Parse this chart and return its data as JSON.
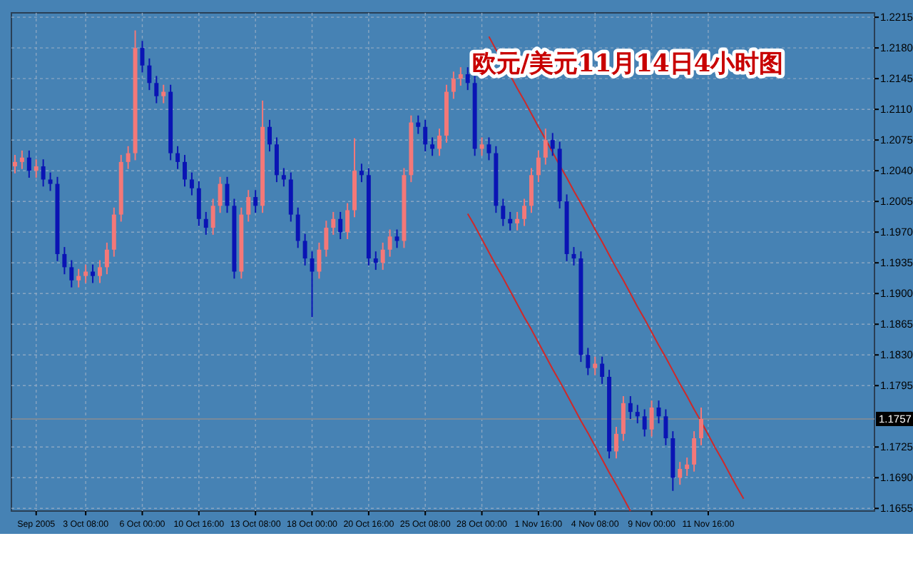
{
  "chart_data": {
    "type": "candlestick",
    "title": "欧元/美元11月14日4小时图",
    "categories": [
      null,
      null,
      null,
      "Sep 2005",
      null,
      null,
      null,
      null,
      null,
      null,
      "3 Oct 08:00",
      null,
      null,
      null,
      null,
      null,
      null,
      null,
      "6 Oct 00:00",
      null,
      null,
      null,
      null,
      null,
      null,
      null,
      "10 Oct 16:00",
      null,
      null,
      null,
      null,
      null,
      null,
      null,
      "13 Oct 08:00",
      null,
      null,
      null,
      null,
      null,
      null,
      null,
      "18 Oct 00:00",
      null,
      null,
      null,
      null,
      null,
      null,
      null,
      "20 Oct 16:00",
      null,
      null,
      null,
      null,
      null,
      null,
      null,
      "25 Oct 08:00",
      null,
      null,
      null,
      null,
      null,
      null,
      null,
      "28 Oct 00:00",
      null,
      null,
      null,
      null,
      null,
      null,
      null,
      "1 Nov 16:00",
      null,
      null,
      null,
      null,
      null,
      null,
      null,
      "4 Nov 08:00",
      null,
      null,
      null,
      null,
      null,
      null,
      null,
      "9 Nov 00:00",
      null,
      null,
      null,
      null,
      null,
      null,
      null,
      "11 Nov 16:00",
      null,
      null,
      null,
      null,
      null,
      null,
      null,
      null,
      null,
      null,
      null,
      null,
      null,
      null,
      null,
      null,
      null,
      null,
      null,
      null,
      null,
      null,
      null
    ],
    "ohlc": [
      [
        1.2045,
        1.2058,
        1.2037,
        1.205
      ],
      [
        1.205,
        1.2063,
        1.2042,
        1.2055
      ],
      [
        1.2055,
        1.2063,
        1.2032,
        1.204
      ],
      [
        1.204,
        1.2053,
        1.2032,
        1.2045
      ],
      [
        1.2045,
        1.2053,
        1.2022,
        1.203
      ],
      [
        1.203,
        1.2038,
        1.2017,
        1.2025
      ],
      [
        1.2025,
        1.2033,
        1.1937,
        1.1945
      ],
      [
        1.1945,
        1.1953,
        1.1922,
        1.193
      ],
      [
        1.193,
        1.1938,
        1.1907,
        1.1915
      ],
      [
        1.1915,
        1.1928,
        1.1907,
        1.192
      ],
      [
        1.192,
        1.1933,
        1.1912,
        1.1925
      ],
      [
        1.1925,
        1.1933,
        1.1912,
        1.192
      ],
      [
        1.192,
        1.1938,
        1.1912,
        1.193
      ],
      [
        1.193,
        1.1958,
        1.1922,
        1.195
      ],
      [
        1.195,
        1.1998,
        1.1942,
        1.199
      ],
      [
        1.199,
        1.2058,
        1.1982,
        1.205
      ],
      [
        1.205,
        1.2068,
        1.2042,
        1.206
      ],
      [
        1.206,
        1.22,
        1.2052,
        1.218
      ],
      [
        1.218,
        1.2188,
        1.2152,
        1.216
      ],
      [
        1.216,
        1.2168,
        1.2132,
        1.214
      ],
      [
        1.214,
        1.2148,
        1.2117,
        1.2125
      ],
      [
        1.2125,
        1.2138,
        1.2117,
        1.213
      ],
      [
        1.213,
        1.2138,
        1.2052,
        1.206
      ],
      [
        1.206,
        1.2068,
        1.2042,
        1.205
      ],
      [
        1.205,
        1.2058,
        1.2022,
        1.203
      ],
      [
        1.203,
        1.2038,
        1.2012,
        1.202
      ],
      [
        1.202,
        1.2028,
        1.1977,
        1.1985
      ],
      [
        1.1985,
        1.1993,
        1.1967,
        1.1975
      ],
      [
        1.1975,
        1.2008,
        1.1967,
        1.2
      ],
      [
        1.2,
        1.2033,
        1.1992,
        1.2025
      ],
      [
        1.2025,
        1.2033,
        1.1992,
        1.2
      ],
      [
        1.2,
        1.2008,
        1.1917,
        1.1925
      ],
      [
        1.1925,
        1.1998,
        1.1917,
        1.199
      ],
      [
        1.199,
        1.2018,
        1.1982,
        1.201
      ],
      [
        1.201,
        1.2018,
        1.1992,
        1.2
      ],
      [
        1.2,
        1.212,
        1.1992,
        1.209
      ],
      [
        1.209,
        1.2098,
        1.2062,
        1.207
      ],
      [
        1.207,
        1.2078,
        1.2027,
        1.2035
      ],
      [
        1.2035,
        1.2043,
        1.2022,
        1.203
      ],
      [
        1.203,
        1.2038,
        1.1982,
        1.199
      ],
      [
        1.199,
        1.1998,
        1.1952,
        1.196
      ],
      [
        1.196,
        1.1968,
        1.1932,
        1.194
      ],
      [
        1.194,
        1.1948,
        1.1873,
        1.1925
      ],
      [
        1.1925,
        1.1958,
        1.1917,
        1.195
      ],
      [
        1.195,
        1.1983,
        1.1942,
        1.1975
      ],
      [
        1.1975,
        1.1993,
        1.1967,
        1.1985
      ],
      [
        1.1985,
        1.1993,
        1.1962,
        1.197
      ],
      [
        1.197,
        1.2003,
        1.1962,
        1.1995
      ],
      [
        1.1995,
        1.2077,
        1.1987,
        1.204
      ],
      [
        1.204,
        1.2048,
        1.2027,
        1.2035
      ],
      [
        1.2035,
        1.2043,
        1.1932,
        1.194
      ],
      [
        1.194,
        1.1948,
        1.1927,
        1.1935
      ],
      [
        1.1935,
        1.1958,
        1.1927,
        1.195
      ],
      [
        1.195,
        1.1973,
        1.1942,
        1.1965
      ],
      [
        1.1965,
        1.1973,
        1.1952,
        1.196
      ],
      [
        1.196,
        1.2043,
        1.1952,
        1.2035
      ],
      [
        1.2035,
        1.2103,
        1.2027,
        1.2095
      ],
      [
        1.2095,
        1.2103,
        1.2082,
        1.209
      ],
      [
        1.209,
        1.2098,
        1.2062,
        1.207
      ],
      [
        1.207,
        1.2078,
        1.2057,
        1.2065
      ],
      [
        1.2065,
        1.2088,
        1.2057,
        1.208
      ],
      [
        1.208,
        1.2138,
        1.2072,
        1.213
      ],
      [
        1.213,
        1.2153,
        1.2122,
        1.2145
      ],
      [
        1.2145,
        1.2158,
        1.2137,
        1.215
      ],
      [
        1.215,
        1.2158,
        1.2132,
        1.214
      ],
      [
        1.214,
        1.2148,
        1.2057,
        1.2065
      ],
      [
        1.2065,
        1.2078,
        1.2057,
        1.207
      ],
      [
        1.207,
        1.2078,
        1.2052,
        1.206
      ],
      [
        1.206,
        1.2068,
        1.1992,
        1.2
      ],
      [
        1.2,
        1.2008,
        1.1977,
        1.1985
      ],
      [
        1.1985,
        1.1993,
        1.1972,
        1.198
      ],
      [
        1.198,
        1.1993,
        1.1972,
        1.1985
      ],
      [
        1.1985,
        1.2008,
        1.1977,
        1.2
      ],
      [
        1.2,
        1.2043,
        1.1992,
        1.2035
      ],
      [
        1.2035,
        1.2063,
        1.2027,
        1.2055
      ],
      [
        1.2055,
        1.2088,
        1.2047,
        1.2075
      ],
      [
        1.2075,
        1.2083,
        1.2057,
        1.2065
      ],
      [
        1.2065,
        1.2073,
        1.1997,
        1.2005
      ],
      [
        1.2005,
        1.2013,
        1.1937,
        1.1945
      ],
      [
        1.1945,
        1.1953,
        1.1932,
        1.194
      ],
      [
        1.194,
        1.1948,
        1.1822,
        1.183
      ],
      [
        1.183,
        1.1838,
        1.1807,
        1.1815
      ],
      [
        1.1815,
        1.1828,
        1.1807,
        1.182
      ],
      [
        1.182,
        1.1828,
        1.1797,
        1.1805
      ],
      [
        1.1805,
        1.1813,
        1.1712,
        1.172
      ],
      [
        1.172,
        1.1748,
        1.1712,
        1.174
      ],
      [
        1.174,
        1.1783,
        1.1732,
        1.1775
      ],
      [
        1.1775,
        1.1783,
        1.1757,
        1.1765
      ],
      [
        1.1765,
        1.1773,
        1.1752,
        1.176
      ],
      [
        1.176,
        1.1768,
        1.1737,
        1.1745
      ],
      [
        1.1745,
        1.1778,
        1.1737,
        1.177
      ],
      [
        1.177,
        1.1778,
        1.1752,
        1.176
      ],
      [
        1.176,
        1.1768,
        1.1727,
        1.1735
      ],
      [
        1.1735,
        1.1743,
        1.1675,
        1.169
      ],
      [
        1.169,
        1.1708,
        1.1682,
        1.17
      ],
      [
        1.17,
        1.1713,
        1.1692,
        1.1705
      ],
      [
        1.1705,
        1.1743,
        1.1697,
        1.1735
      ],
      [
        1.1735,
        1.177,
        1.1727,
        1.1757
      ],
      null,
      null,
      null,
      null,
      null,
      null,
      null,
      null,
      null,
      null,
      null,
      null,
      null,
      null,
      null,
      null,
      null,
      null,
      null,
      null,
      null,
      null,
      null,
      null
    ],
    "colors": [
      "#f47878",
      "#f47878",
      "#0a14b4",
      "#f47878",
      "#0a14b4",
      "#0a14b4",
      "#0a14b4",
      "#0a14b4",
      "#0a14b4",
      "#f47878",
      "#f47878",
      "#0a14b4",
      "#f47878",
      "#f47878",
      "#f47878",
      "#f47878",
      "#f47878",
      "#f47878",
      "#0a14b4",
      "#0a14b4",
      "#0a14b4",
      "#f47878",
      "#0a14b4",
      "#0a14b4",
      "#0a14b4",
      "#0a14b4",
      "#0a14b4",
      "#0a14b4",
      "#f47878",
      "#f47878",
      "#0a14b4",
      "#0a14b4",
      "#f47878",
      "#f47878",
      "#0a14b4",
      "#f47878",
      "#0a14b4",
      "#0a14b4",
      "#0a14b4",
      "#0a14b4",
      "#0a14b4",
      "#0a14b4",
      "#0a14b4",
      "#f47878",
      "#f47878",
      "#f47878",
      "#0a14b4",
      "#f47878",
      "#f47878",
      "#0a14b4",
      "#0a14b4",
      "#0a14b4",
      "#f47878",
      "#f47878",
      "#0a14b4",
      "#f47878",
      "#f47878",
      "#0a14b4",
      "#0a14b4",
      "#0a14b4",
      "#f47878",
      "#f47878",
      "#f47878",
      "#f47878",
      "#0a14b4",
      "#0a14b4",
      "#f47878",
      "#0a14b4",
      "#0a14b4",
      "#0a14b4",
      "#0a14b4",
      "#f47878",
      "#f47878",
      "#f47878",
      "#f47878",
      "#f47878",
      "#0a14b4",
      "#0a14b4",
      "#0a14b4",
      "#0a14b4",
      "#0a14b4",
      "#0a14b4",
      "#f47878",
      "#0a14b4",
      "#0a14b4",
      "#f47878",
      "#f47878",
      "#0a14b4",
      "#0a14b4",
      "#0a14b4",
      "#f47878",
      "#0a14b4",
      "#0a14b4",
      "#0a14b4",
      "#f47878",
      "#f47878",
      "#f47878",
      "#f47878",
      null,
      null,
      null,
      null,
      null,
      null,
      null,
      null,
      null,
      null,
      null,
      null,
      null,
      null,
      null,
      null,
      null,
      null,
      null,
      null,
      null,
      null,
      null,
      null
    ],
    "series": [
      {
        "type": "line",
        "color": "#d02828",
        "values": [
          null,
          null,
          null,
          null,
          null,
          null,
          null,
          null,
          null,
          null,
          null,
          null,
          null,
          null,
          null,
          null,
          null,
          null,
          null,
          null,
          null,
          null,
          null,
          null,
          null,
          null,
          null,
          null,
          null,
          null,
          null,
          null,
          null,
          null,
          null,
          null,
          null,
          null,
          null,
          null,
          null,
          null,
          null,
          null,
          null,
          null,
          null,
          null,
          null,
          null,
          null,
          null,
          null,
          null,
          null,
          null,
          null,
          null,
          null,
          null,
          null,
          null,
          null,
          null,
          null,
          null,
          null,
          1.2193,
          1.2178,
          1.2164,
          1.2149,
          1.2134,
          1.212,
          1.2105,
          1.209,
          1.2076,
          1.2061,
          1.2046,
          1.2032,
          1.2017,
          1.2003,
          1.1988,
          1.1973,
          1.1959,
          1.1944,
          1.1929,
          1.1915,
          1.19,
          1.1885,
          1.1871,
          1.1856,
          1.1841,
          1.1827,
          1.1812,
          1.1797,
          1.1783,
          1.1768,
          1.1754,
          1.1739,
          1.1724,
          1.171,
          1.1695,
          1.168,
          1.1666,
          null,
          null,
          null,
          null,
          null,
          null,
          null,
          null,
          null,
          null,
          null,
          null,
          null,
          null,
          null,
          null,
          null,
          null
        ]
      },
      {
        "type": "line",
        "color": "#d02828",
        "values": [
          null,
          null,
          null,
          null,
          null,
          null,
          null,
          null,
          null,
          null,
          null,
          null,
          null,
          null,
          null,
          null,
          null,
          null,
          null,
          null,
          null,
          null,
          null,
          null,
          null,
          null,
          null,
          null,
          null,
          null,
          null,
          null,
          null,
          null,
          null,
          null,
          null,
          null,
          null,
          null,
          null,
          null,
          null,
          null,
          null,
          null,
          null,
          null,
          null,
          null,
          null,
          null,
          null,
          null,
          null,
          null,
          null,
          null,
          null,
          null,
          null,
          null,
          null,
          null,
          1.1991,
          1.1977,
          1.1962,
          1.1947,
          1.1932,
          1.1918,
          1.1903,
          1.1888,
          1.1873,
          1.1859,
          1.1844,
          1.1829,
          1.1814,
          1.18,
          1.1785,
          1.177,
          1.1755,
          1.1741,
          1.1726,
          1.1711,
          1.1696,
          1.1682,
          1.1667,
          1.1652,
          null,
          null,
          null,
          null,
          null,
          null,
          null,
          null,
          null,
          null,
          null,
          null,
          null,
          null,
          null,
          null,
          null,
          null,
          null,
          null,
          null,
          null,
          null,
          null,
          null,
          null,
          null,
          null,
          null,
          null,
          null,
          null,
          null,
          null
        ]
      }
    ],
    "ref_lines": [
      {
        "axis": "y",
        "value": 1.1757,
        "label": "1.1757",
        "color": "#7a8a9a"
      }
    ],
    "ylim": [
      1.1652,
      1.222
    ],
    "yticks": [
      {
        "value": 1.1655,
        "label": "1.1655"
      },
      {
        "value": 1.169,
        "label": "1.1690"
      },
      {
        "value": 1.1725,
        "label": "1.1725"
      },
      {
        "value": 1.1795,
        "label": "1.1795"
      },
      {
        "value": 1.183,
        "label": "1.1830"
      },
      {
        "value": 1.1865,
        "label": "1.1865"
      },
      {
        "value": 1.19,
        "label": "1.1900"
      },
      {
        "value": 1.1935,
        "label": "1.1935"
      },
      {
        "value": 1.197,
        "label": "1.1970"
      },
      {
        "value": 1.2005,
        "label": "1.2005"
      },
      {
        "value": 1.204,
        "label": "1.2040"
      },
      {
        "value": 1.2075,
        "label": "1.2075"
      },
      {
        "value": 1.211,
        "label": "1.2110"
      },
      {
        "value": 1.2145,
        "label": "1.2145"
      },
      {
        "value": 1.218,
        "label": "1.2180"
      },
      {
        "value": 1.2215,
        "label": "1.2215"
      }
    ],
    "grid": true
  }
}
